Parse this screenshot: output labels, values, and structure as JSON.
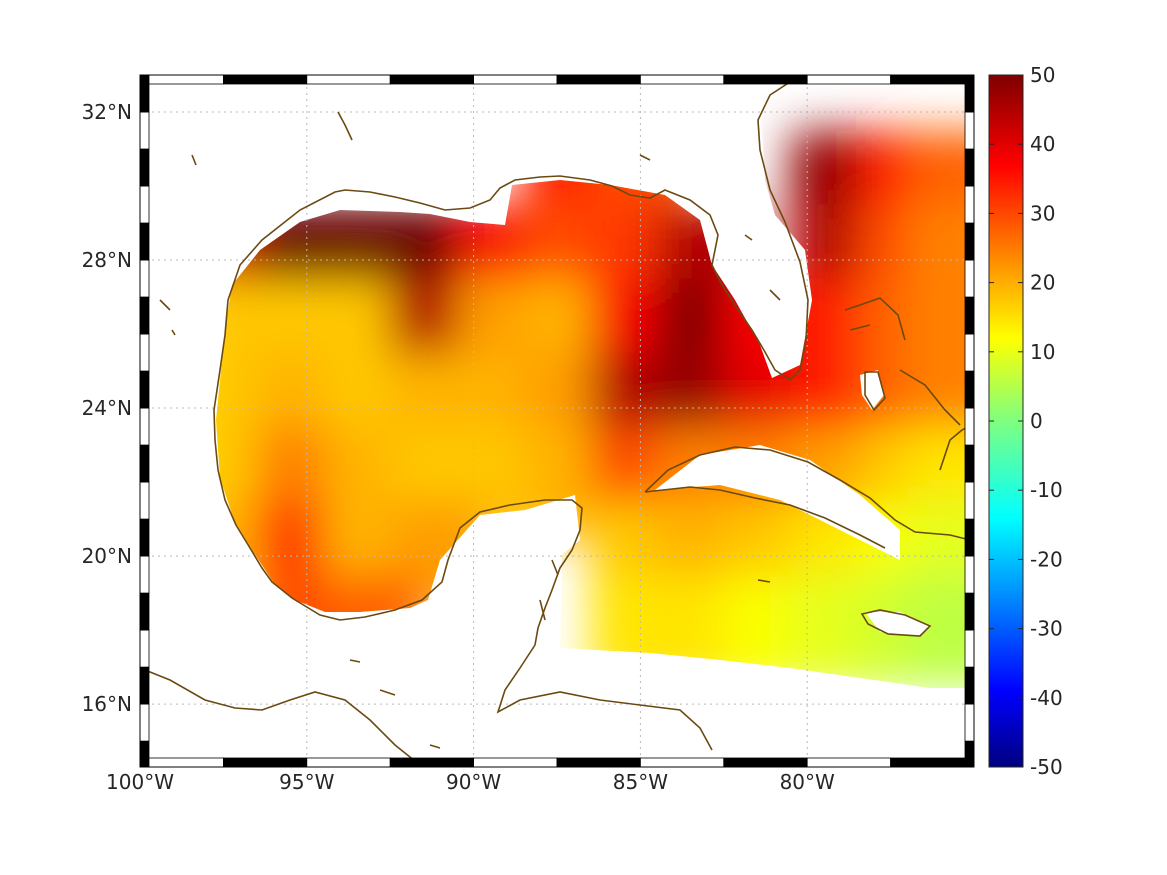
{
  "map": {
    "longitude_range": [
      -100,
      -75
    ],
    "latitude_range": [
      14.3,
      33
    ],
    "x_ticks": [
      {
        "value": -100,
        "label": "100°W"
      },
      {
        "value": -95,
        "label": "95°W"
      },
      {
        "value": -90,
        "label": "90°W"
      },
      {
        "value": -85,
        "label": "85°W"
      },
      {
        "value": -80,
        "label": "80°W"
      }
    ],
    "y_ticks": [
      {
        "value": 32,
        "label": "32°N"
      },
      {
        "value": 28,
        "label": "28°N"
      },
      {
        "value": 24,
        "label": "24°N"
      },
      {
        "value": 20,
        "label": "20°N"
      },
      {
        "value": 16,
        "label": "16°N"
      }
    ],
    "grid": true,
    "frame_style": "alternating black and white border",
    "coastline_color": "#6b4a12",
    "land_color": "#ffffff"
  },
  "colorbar": {
    "position": "right",
    "range": [
      -50,
      50
    ],
    "colormap": "jet",
    "ticks": [
      {
        "value": 50,
        "label": "50"
      },
      {
        "value": 40,
        "label": "40"
      },
      {
        "value": 30,
        "label": "30"
      },
      {
        "value": 20,
        "label": "20"
      },
      {
        "value": 10,
        "label": "10"
      },
      {
        "value": 0,
        "label": "0"
      },
      {
        "value": -10,
        "label": "-10"
      },
      {
        "value": -20,
        "label": "-20"
      },
      {
        "value": -30,
        "label": "-30"
      },
      {
        "value": -40,
        "label": "-40"
      },
      {
        "value": -50,
        "label": "-50"
      }
    ]
  },
  "chart_data": {
    "type": "heatmap",
    "x": [
      -99,
      -97,
      -95,
      -93,
      -91,
      -89,
      -87,
      -85,
      -83,
      -81,
      -79,
      -77,
      -75.5
    ],
    "y": [
      30,
      28,
      26,
      24,
      22,
      20,
      18,
      16
    ],
    "values": [
      [
        null,
        null,
        null,
        null,
        null,
        null,
        35,
        30,
        null,
        null,
        48,
        35,
        28
      ],
      [
        null,
        42,
        52,
        52,
        52,
        38,
        30,
        32,
        45,
        null,
        45,
        30,
        25
      ],
      [
        null,
        18,
        18,
        18,
        45,
        22,
        20,
        38,
        50,
        38,
        35,
        28,
        25
      ],
      [
        12,
        18,
        20,
        18,
        20,
        20,
        22,
        45,
        48,
        40,
        35,
        28,
        25
      ],
      [
        10,
        18,
        25,
        20,
        18,
        18,
        20,
        30,
        25,
        25,
        22,
        18,
        15
      ],
      [
        null,
        20,
        32,
        20,
        22,
        null,
        null,
        18,
        20,
        18,
        15,
        12,
        10
      ],
      [
        null,
        null,
        30,
        28,
        null,
        null,
        null,
        15,
        15,
        12,
        10,
        8,
        6
      ],
      [
        null,
        null,
        null,
        null,
        null,
        null,
        null,
        null,
        null,
        null,
        null,
        null,
        null
      ]
    ],
    "value_range": [
      -50,
      50
    ],
    "colormap": "jet",
    "title": "",
    "xlabel": "",
    "ylabel": ""
  }
}
